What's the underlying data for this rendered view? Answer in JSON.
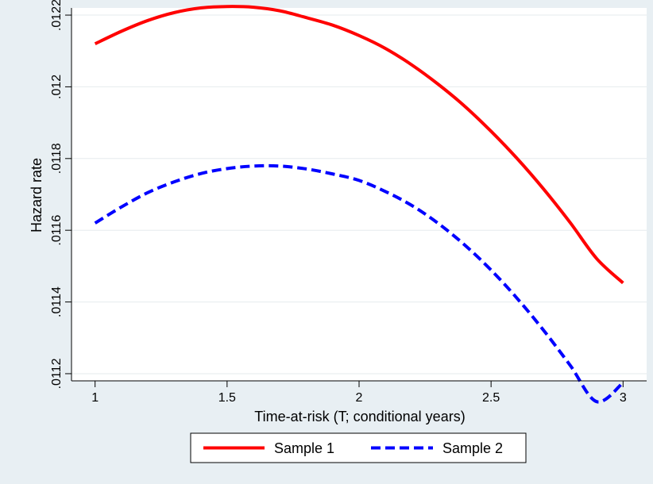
{
  "chart_data": {
    "type": "line",
    "xlabel": "Time-at-risk (T; conditional years)",
    "ylabel": "Hazard rate",
    "xlim": [
      1,
      3
    ],
    "ylim": [
      0.01118,
      0.01222
    ],
    "x_ticks": [
      1,
      1.5,
      2,
      2.5,
      3
    ],
    "x_tick_labels": [
      "1",
      "1.5",
      "2",
      "2.5",
      "3"
    ],
    "y_ticks": [
      0.0112,
      0.0114,
      0.0116,
      0.0118,
      0.012,
      0.0122
    ],
    "y_tick_labels": [
      ".0112",
      ".0114",
      ".0116",
      ".0118",
      ".012",
      ".0122"
    ],
    "grid": true,
    "legend_position": "bottom",
    "series": [
      {
        "name": "Sample 1",
        "color": "#ff0000",
        "style": "solid",
        "x": [
          1,
          1.1,
          1.2,
          1.3,
          1.4,
          1.5,
          1.6,
          1.7,
          1.8,
          1.9,
          2,
          2.1,
          2.2,
          2.3,
          2.4,
          2.5,
          2.6,
          2.7,
          2.8,
          2.9,
          3
        ],
        "y": [
          0.01212,
          0.012155,
          0.012185,
          0.012207,
          0.01222,
          0.012224,
          0.012222,
          0.012212,
          0.012193,
          0.012172,
          0.012143,
          0.012107,
          0.012061,
          0.012007,
          0.011946,
          0.011876,
          0.011799,
          0.011714,
          0.011621,
          0.011521,
          0.011453
        ]
      },
      {
        "name": "Sample 2",
        "color": "#0000ff",
        "style": "dash",
        "x": [
          1,
          1.1,
          1.2,
          1.3,
          1.4,
          1.5,
          1.6,
          1.7,
          1.8,
          1.9,
          2,
          2.1,
          2.2,
          2.3,
          2.4,
          2.5,
          2.6,
          2.7,
          2.8,
          2.9,
          3
        ],
        "y": [
          0.01162,
          0.011665,
          0.011705,
          0.011735,
          0.011758,
          0.011772,
          0.011779,
          0.011779,
          0.011771,
          0.011757,
          0.011739,
          0.011708,
          0.011669,
          0.011619,
          0.011559,
          0.011489,
          0.011409,
          0.01132,
          0.011223,
          0.011122,
          0.011175
        ]
      }
    ]
  }
}
